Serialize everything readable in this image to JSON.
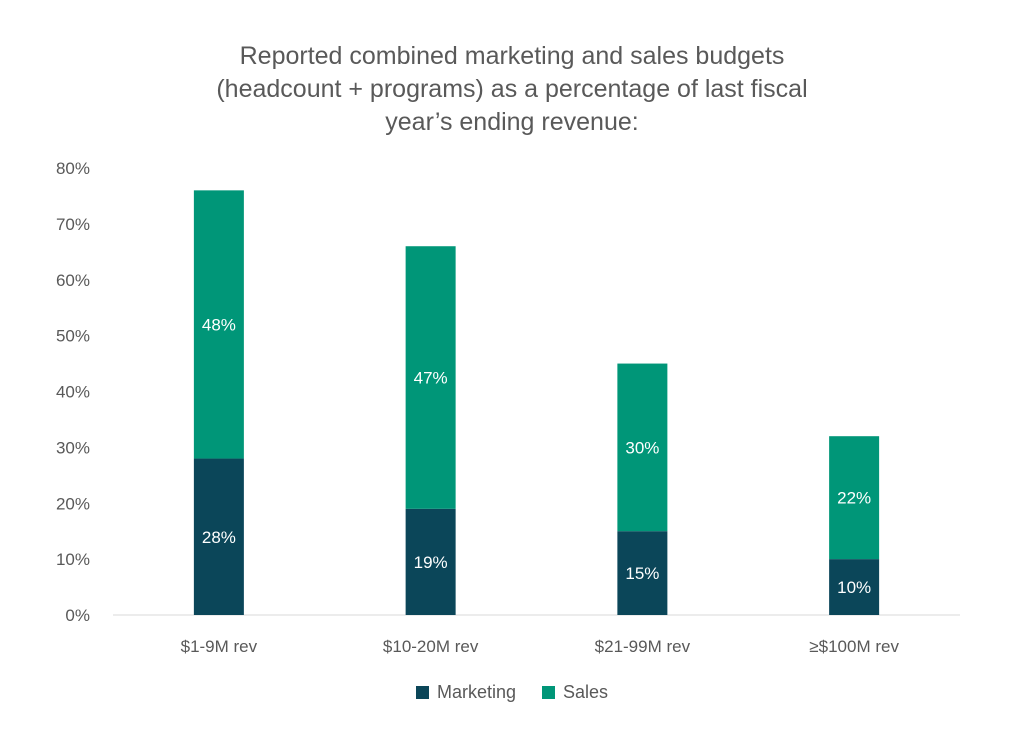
{
  "chart_data": {
    "type": "bar",
    "stacked": true,
    "title_lines": [
      "Reported combined marketing and sales budgets",
      "(headcount + programs) as a percentage of last fiscal",
      "year’s ending revenue:"
    ],
    "categories": [
      "$1-9M rev",
      "$10-20M rev",
      "$21-99M rev",
      "≥$100M rev"
    ],
    "series": [
      {
        "name": "Marketing",
        "values": [
          28,
          19,
          15,
          10
        ],
        "labels": [
          "28%",
          "19%",
          "15%",
          "10%"
        ],
        "color": "#0b4659"
      },
      {
        "name": "Sales",
        "values": [
          48,
          47,
          30,
          22
        ],
        "labels": [
          "48%",
          "47%",
          "30%",
          "22%"
        ],
        "color": "#009678"
      }
    ],
    "ylim": [
      0,
      80
    ],
    "yticks": [
      "0%",
      "10%",
      "20%",
      "30%",
      "40%",
      "50%",
      "60%",
      "70%",
      "80%"
    ],
    "grid": false,
    "legend_position": "bottom"
  }
}
